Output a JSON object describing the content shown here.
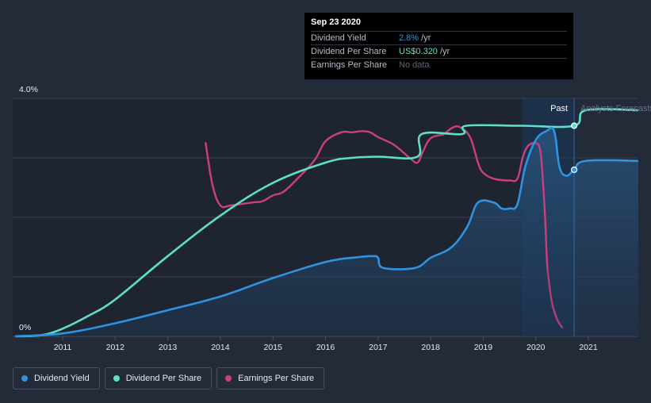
{
  "chart_data": {
    "type": "line",
    "x_axis": {
      "range": [
        2010.05,
        2021.95
      ],
      "ticks": [
        "2011",
        "2012",
        "2013",
        "2014",
        "2015",
        "2016",
        "2017",
        "2018",
        "2019",
        "2020",
        "2021"
      ],
      "tick_values": [
        2011,
        2012,
        2013,
        2014,
        2015,
        2016,
        2017,
        2018,
        2019,
        2020,
        2021
      ]
    },
    "y_axis": {
      "range": [
        0,
        4
      ],
      "labels": [
        "4.0%",
        "0%"
      ],
      "label_values": [
        4,
        0
      ],
      "grid_values": [
        0,
        1,
        2,
        3,
        4
      ]
    },
    "past_marker": {
      "x": 2020.73,
      "label": "Past",
      "forecast_label": "Analysts Forecasts"
    },
    "highlight_band": {
      "x_start": 2019.73,
      "x_end": 2020.73
    },
    "series": [
      {
        "name": "Dividend Yield",
        "color": "#2e93e0",
        "fill": true,
        "unit": "%",
        "points": [
          [
            2010.1,
            0.0
          ],
          [
            2011.0,
            0.05
          ],
          [
            2012.0,
            0.22
          ],
          [
            2013.0,
            0.44
          ],
          [
            2014.0,
            0.67
          ],
          [
            2015.0,
            0.98
          ],
          [
            2016.0,
            1.25
          ],
          [
            2016.6,
            1.33
          ],
          [
            2016.9,
            1.35
          ],
          [
            2017.0,
            1.32
          ],
          [
            2017.1,
            1.15
          ],
          [
            2017.7,
            1.15
          ],
          [
            2018.0,
            1.32
          ],
          [
            2018.4,
            1.5
          ],
          [
            2018.7,
            1.85
          ],
          [
            2018.9,
            2.25
          ],
          [
            2019.2,
            2.25
          ],
          [
            2019.35,
            2.15
          ],
          [
            2019.5,
            2.15
          ],
          [
            2019.65,
            2.22
          ],
          [
            2019.8,
            2.85
          ],
          [
            2020.0,
            3.3
          ],
          [
            2020.2,
            3.45
          ],
          [
            2020.35,
            3.45
          ],
          [
            2020.45,
            2.85
          ],
          [
            2020.58,
            2.7
          ],
          [
            2020.73,
            2.8
          ],
          [
            2020.95,
            2.95
          ],
          [
            2021.95,
            2.95
          ]
        ]
      },
      {
        "name": "Dividend Per Share",
        "color": "#5ee0c6",
        "fill": false,
        "unit": "US$",
        "points": [
          [
            2010.1,
            0.0
          ],
          [
            2010.6,
            0.02
          ],
          [
            2011.0,
            0.13
          ],
          [
            2011.5,
            0.35
          ],
          [
            2012.0,
            0.62
          ],
          [
            2013.0,
            1.35
          ],
          [
            2014.0,
            2.03
          ],
          [
            2015.0,
            2.58
          ],
          [
            2016.0,
            2.92
          ],
          [
            2016.5,
            3.0
          ],
          [
            2017.0,
            3.02
          ],
          [
            2017.75,
            3.02
          ],
          [
            2017.83,
            3.4
          ],
          [
            2018.6,
            3.4
          ],
          [
            2018.68,
            3.54
          ],
          [
            2019.73,
            3.54
          ],
          [
            2020.73,
            3.54
          ],
          [
            2020.95,
            3.8
          ],
          [
            2021.95,
            3.8
          ]
        ]
      },
      {
        "name": "Earnings Per Share",
        "color": "#c9407d",
        "fill": false,
        "unit": "US$",
        "segments": [
          [
            [
              2013.72,
              3.25
            ],
            [
              2013.85,
              2.55
            ],
            [
              2014.0,
              2.2
            ],
            [
              2014.2,
              2.2
            ],
            [
              2014.6,
              2.25
            ],
            [
              2014.8,
              2.27
            ],
            [
              2015.0,
              2.37
            ],
            [
              2015.2,
              2.43
            ],
            [
              2015.5,
              2.68
            ],
            [
              2015.8,
              2.97
            ],
            [
              2016.0,
              3.28
            ],
            [
              2016.3,
              3.43
            ],
            [
              2016.5,
              3.43
            ],
            [
              2016.7,
              3.45
            ],
            [
              2016.85,
              3.43
            ],
            [
              2017.0,
              3.35
            ],
            [
              2017.3,
              3.22
            ],
            [
              2017.6,
              3.0
            ],
            [
              2017.75,
              2.92
            ],
            [
              2017.85,
              3.1
            ],
            [
              2018.0,
              3.33
            ],
            [
              2018.25,
              3.4
            ],
            [
              2018.4,
              3.5
            ],
            [
              2018.55,
              3.52
            ],
            [
              2018.75,
              3.35
            ],
            [
              2018.9,
              2.92
            ],
            [
              2019.0,
              2.75
            ],
            [
              2019.2,
              2.65
            ],
            [
              2019.5,
              2.62
            ],
            [
              2019.65,
              2.65
            ],
            [
              2019.75,
              3.0
            ],
            [
              2019.85,
              3.2
            ],
            [
              2020.0,
              3.25
            ],
            [
              2020.08,
              3.15
            ],
            [
              2020.12,
              2.8
            ],
            [
              2020.18,
              1.95
            ],
            [
              2020.2,
              1.5
            ],
            [
              2020.22,
              1.15
            ]
          ],
          [
            [
              2020.22,
              1.15
            ],
            [
              2020.3,
              0.6
            ],
            [
              2020.4,
              0.3
            ],
            [
              2020.5,
              0.15
            ]
          ]
        ]
      }
    ]
  },
  "tooltip": {
    "date": "Sep 23 2020",
    "rows": [
      {
        "name": "Dividend Yield",
        "value": "2.8%",
        "suffix": "/yr",
        "color": "#2e93e0"
      },
      {
        "name": "Dividend Per Share",
        "value": "US$0.320",
        "suffix": "/yr",
        "color": "#5ee0c6"
      },
      {
        "name": "Earnings Per Share",
        "value": "No data",
        "suffix": "",
        "color": "#5f6573"
      }
    ]
  },
  "legend": [
    {
      "label": "Dividend Yield",
      "color": "#2e93e0"
    },
    {
      "label": "Dividend Per Share",
      "color": "#5ee0c6"
    },
    {
      "label": "Earnings Per Share",
      "color": "#c9407d"
    }
  ]
}
